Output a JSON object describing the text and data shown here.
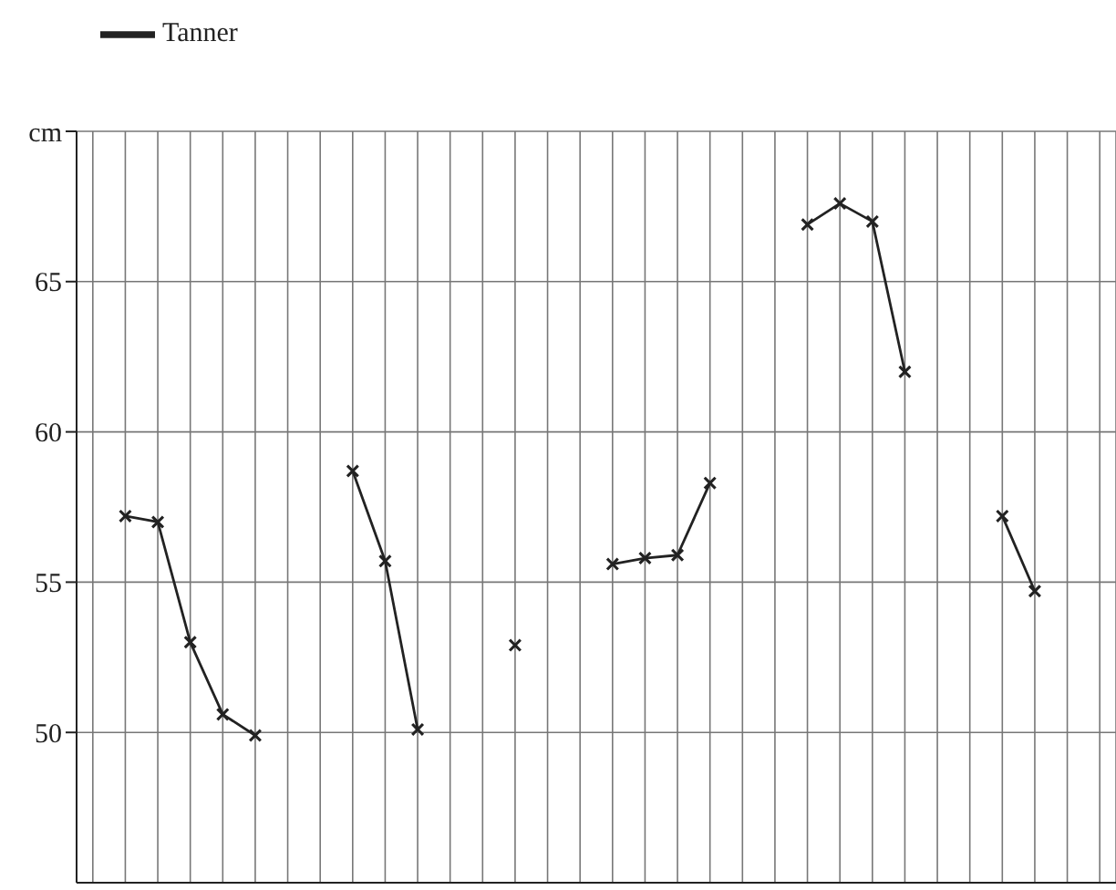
{
  "chart_data": {
    "type": "line",
    "categories": [
      null,
      null,
      null,
      null,
      null,
      null,
      null,
      null,
      null,
      null,
      null,
      null,
      null,
      null,
      null,
      null,
      null,
      null,
      null,
      null,
      null,
      null,
      null,
      null,
      null,
      null,
      null,
      null,
      null,
      null,
      null,
      null
    ],
    "series": [
      {
        "name": "Tanner",
        "color": "#222222",
        "values": [
          null,
          57.2,
          57.0,
          53.0,
          50.6,
          49.9,
          null,
          null,
          58.7,
          55.7,
          50.1,
          null,
          null,
          52.9,
          null,
          null,
          55.6,
          55.8,
          55.9,
          58.3,
          null,
          null,
          66.9,
          67.6,
          67.0,
          62.0,
          null,
          null,
          57.2,
          54.7,
          null,
          null
        ]
      }
    ],
    "ylim": [
      45,
      70
    ],
    "yticks": [
      50,
      55,
      60,
      65,
      {
        "value": 70,
        "label": "cm"
      }
    ],
    "grid": true,
    "legend": "top left",
    "marker": "cross",
    "line_style": "solid",
    "tick_labels": "y"
  }
}
